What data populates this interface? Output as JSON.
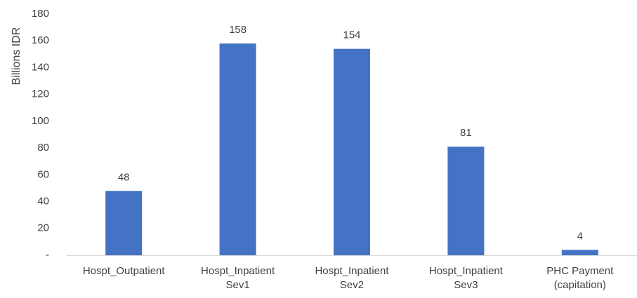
{
  "chart_data": {
    "type": "bar",
    "ylabel": "Billions IDR",
    "xlabel": "",
    "categories": [
      [
        "Hospt_Outpatient"
      ],
      [
        "Hospt_Inpatient",
        "Sev1"
      ],
      [
        "Hospt_Inpatient",
        "Sev2"
      ],
      [
        "Hospt_Inpatient",
        "Sev3"
      ],
      [
        "PHC Payment",
        "(capitation)"
      ]
    ],
    "values": [
      48,
      158,
      154,
      81,
      4
    ],
    "data_labels": [
      "48",
      "158",
      "154",
      "81",
      "4"
    ],
    "ylim": [
      0,
      180
    ],
    "yticks": [
      0,
      20,
      40,
      60,
      80,
      100,
      120,
      140,
      160,
      180
    ],
    "ytick_labels": [
      "-",
      "20",
      "40",
      "60",
      "80",
      "100",
      "120",
      "140",
      "160",
      "180"
    ],
    "grid": false,
    "legend": "none",
    "colors": {
      "bar": "#4472C4",
      "axis": "#D9D9D9",
      "text": "#404040"
    }
  }
}
